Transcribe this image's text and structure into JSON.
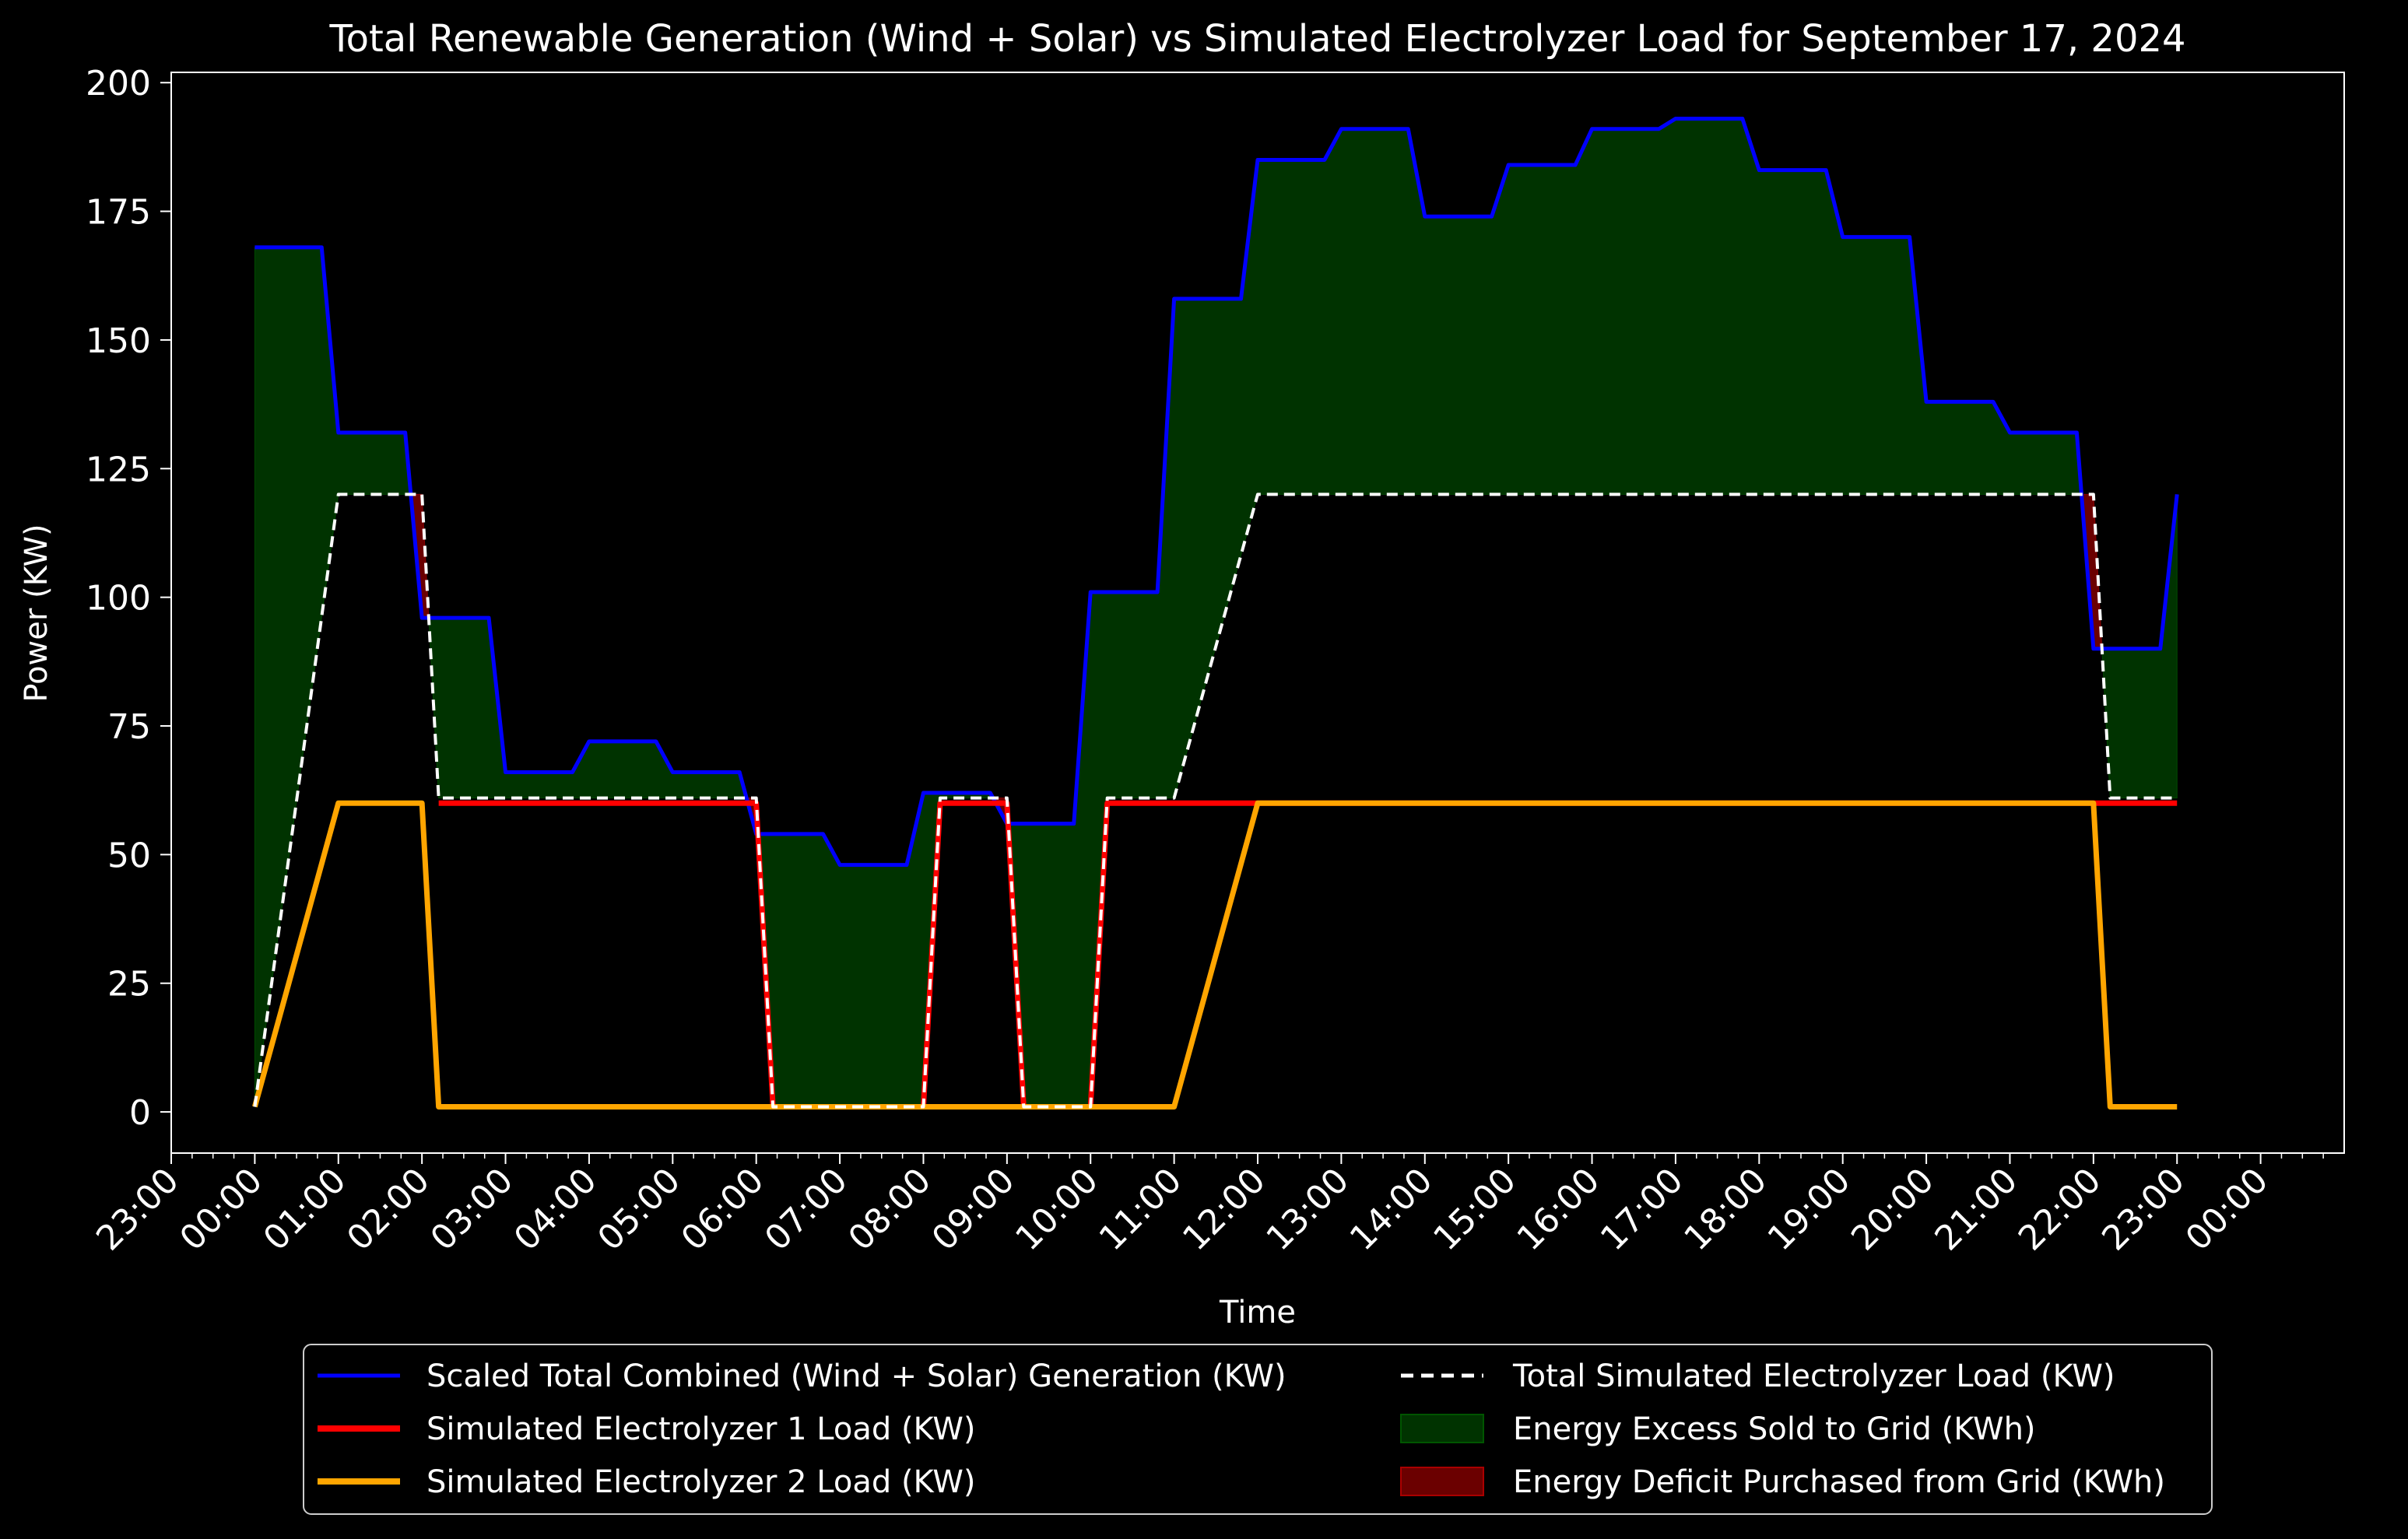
{
  "chart_data": {
    "type": "line",
    "title": "Total Renewable Generation (Wind + Solar) vs Simulated Electrolyzer Load for September 17, 2024",
    "xlabel": "Time",
    "ylabel": "Power (KW)",
    "x_axis_hours": [
      -1,
      25
    ],
    "ylim": [
      -8,
      202
    ],
    "y_ticks": [
      0,
      25,
      50,
      75,
      100,
      125,
      150,
      175,
      200
    ],
    "x_ticks": [
      {
        "h": -1,
        "label": "23:00"
      },
      {
        "h": 0,
        "label": "00:00"
      },
      {
        "h": 1,
        "label": "01:00"
      },
      {
        "h": 2,
        "label": "02:00"
      },
      {
        "h": 3,
        "label": "03:00"
      },
      {
        "h": 4,
        "label": "04:00"
      },
      {
        "h": 5,
        "label": "05:00"
      },
      {
        "h": 6,
        "label": "06:00"
      },
      {
        "h": 7,
        "label": "07:00"
      },
      {
        "h": 8,
        "label": "08:00"
      },
      {
        "h": 9,
        "label": "09:00"
      },
      {
        "h": 10,
        "label": "10:00"
      },
      {
        "h": 11,
        "label": "11:00"
      },
      {
        "h": 12,
        "label": "12:00"
      },
      {
        "h": 13,
        "label": "13:00"
      },
      {
        "h": 14,
        "label": "14:00"
      },
      {
        "h": 15,
        "label": "15:00"
      },
      {
        "h": 16,
        "label": "16:00"
      },
      {
        "h": 17,
        "label": "17:00"
      },
      {
        "h": 18,
        "label": "18:00"
      },
      {
        "h": 19,
        "label": "19:00"
      },
      {
        "h": 20,
        "label": "20:00"
      },
      {
        "h": 21,
        "label": "21:00"
      },
      {
        "h": 22,
        "label": "22:00"
      },
      {
        "h": 23,
        "label": "23:00"
      },
      {
        "h": 24,
        "label": "00:00"
      }
    ],
    "grid": false,
    "legend_position": "below",
    "series": [
      {
        "name": "Scaled Total Combined (Wind + Solar) Generation (KW)",
        "color": "#0000ff",
        "style": "solid",
        "points": [
          [
            0,
            168
          ],
          [
            0.8,
            168
          ],
          [
            1,
            132
          ],
          [
            1.8,
            132
          ],
          [
            2,
            96
          ],
          [
            2.8,
            96
          ],
          [
            3,
            66
          ],
          [
            3.8,
            66
          ],
          [
            4,
            72
          ],
          [
            4.8,
            72
          ],
          [
            5,
            66
          ],
          [
            5.8,
            66
          ],
          [
            6,
            54
          ],
          [
            6.8,
            54
          ],
          [
            7,
            48
          ],
          [
            7.8,
            48
          ],
          [
            8,
            62
          ],
          [
            8.8,
            62
          ],
          [
            9,
            56
          ],
          [
            9.8,
            56
          ],
          [
            10,
            101
          ],
          [
            10.8,
            101
          ],
          [
            11,
            158
          ],
          [
            11.8,
            158
          ],
          [
            12,
            185
          ],
          [
            12.8,
            185
          ],
          [
            13,
            191
          ],
          [
            13.8,
            191
          ],
          [
            14,
            174
          ],
          [
            14.8,
            174
          ],
          [
            15,
            184
          ],
          [
            15.8,
            184
          ],
          [
            16,
            191
          ],
          [
            16.8,
            191
          ],
          [
            17,
            193
          ],
          [
            17.8,
            193
          ],
          [
            18,
            183
          ],
          [
            18.8,
            183
          ],
          [
            19,
            170
          ],
          [
            19.8,
            170
          ],
          [
            20,
            138
          ],
          [
            20.8,
            138
          ],
          [
            21,
            132
          ],
          [
            21.8,
            132
          ],
          [
            22,
            90
          ],
          [
            22.8,
            90
          ],
          [
            23,
            120
          ]
        ]
      },
      {
        "name": "Total Simulated Electrolyzer Load (KW)",
        "color": "#ffffff",
        "style": "dashed",
        "points": [
          [
            0,
            1
          ],
          [
            1,
            120
          ],
          [
            2,
            120
          ],
          [
            2.2,
            61
          ],
          [
            6,
            61
          ],
          [
            6.2,
            1
          ],
          [
            8,
            1
          ],
          [
            8.2,
            61
          ],
          [
            9,
            61
          ],
          [
            9.2,
            1
          ],
          [
            10,
            1
          ],
          [
            10.2,
            61
          ],
          [
            11,
            61
          ],
          [
            12,
            120
          ],
          [
            22,
            120
          ],
          [
            22.2,
            61
          ],
          [
            23,
            61
          ]
        ]
      },
      {
        "name": "Simulated Electrolyzer 1 Load (KW)",
        "color": "#ff0000",
        "style": "solid",
        "points": [
          [
            2.2,
            60
          ],
          [
            6,
            60
          ],
          [
            6.2,
            1
          ],
          [
            8,
            1
          ],
          [
            8.2,
            60
          ],
          [
            9,
            60
          ],
          [
            9.2,
            1
          ],
          [
            10,
            1
          ],
          [
            10.2,
            60
          ],
          [
            22,
            60
          ],
          [
            22.2,
            60
          ],
          [
            23,
            60
          ]
        ]
      },
      {
        "name": "Simulated Electrolyzer 2 Load (KW)",
        "color": "#ffa500",
        "style": "solid",
        "points": [
          [
            0,
            1
          ],
          [
            1,
            60
          ],
          [
            2,
            60
          ],
          [
            2.2,
            1
          ],
          [
            11,
            1
          ],
          [
            12,
            60
          ],
          [
            22,
            60
          ],
          [
            22.2,
            1
          ],
          [
            23,
            1
          ]
        ]
      }
    ],
    "fills": [
      {
        "name": "Energy Excess Sold to Grid (KWh)",
        "color": "#003300",
        "edge": "#004a00"
      },
      {
        "name": "Energy Deficit Purchased from Grid (KWh)",
        "color": "#6b0000",
        "edge": "#8b0000"
      }
    ],
    "legend": [
      {
        "label": "Scaled Total Combined (Wind + Solar) Generation (KW)",
        "kind": "line",
        "color": "#0000ff",
        "dash": false
      },
      {
        "label": "Simulated Electrolyzer 1 Load (KW)",
        "kind": "line",
        "color": "#ff0000",
        "dash": false
      },
      {
        "label": "Simulated Electrolyzer 2 Load (KW)",
        "kind": "line",
        "color": "#ffa500",
        "dash": false
      },
      {
        "label": "Total Simulated Electrolyzer Load (KW)",
        "kind": "line",
        "color": "#ffffff",
        "dash": true
      },
      {
        "label": "Energy Excess Sold to Grid (KWh)",
        "kind": "patch",
        "color": "#003300",
        "edge": "#005500"
      },
      {
        "label": "Energy Deficit Purchased from Grid (KWh)",
        "kind": "patch",
        "color": "#6b0000",
        "edge": "#aa0000"
      }
    ]
  }
}
